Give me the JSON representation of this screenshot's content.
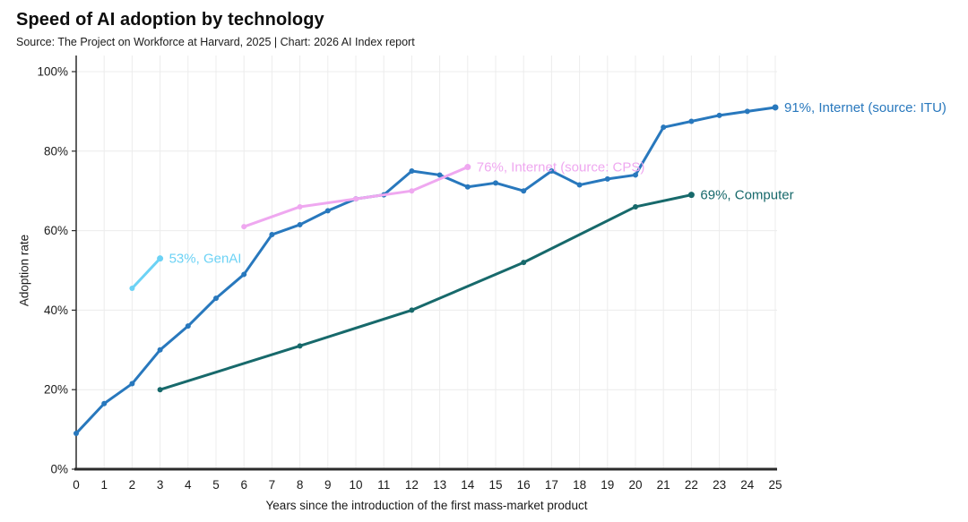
{
  "header": {
    "title": "Speed of AI adoption by technology",
    "subtitle": "Source: The Project on Workforce at Harvard, 2025 | Chart: 2026 AI Index report"
  },
  "chart_data": {
    "type": "line",
    "title": "Speed of AI adoption by technology",
    "xlabel": "Years since the introduction of the first mass-market product",
    "ylabel": "Adoption rate",
    "xlim": [
      0,
      25
    ],
    "ylim": [
      0,
      100
    ],
    "grid": true,
    "legend_position": "end-of-line-labels",
    "x_ticks": [
      0,
      1,
      2,
      3,
      4,
      5,
      6,
      7,
      8,
      9,
      10,
      11,
      12,
      13,
      14,
      15,
      16,
      17,
      18,
      19,
      20,
      21,
      22,
      23,
      24,
      25
    ],
    "y_ticks": [
      0,
      20,
      40,
      60,
      80,
      100
    ],
    "y_tick_labels": [
      "0%",
      "20%",
      "40%",
      "60%",
      "80%",
      "100%"
    ],
    "series": [
      {
        "name": "Internet (source: ITU)",
        "end_label": "91%, Internet (source: ITU)",
        "color": "#2878BD",
        "x": [
          0,
          1,
          2,
          3,
          4,
          5,
          6,
          7,
          8,
          9,
          10,
          11,
          12,
          13,
          14,
          15,
          16,
          17,
          18,
          19,
          20,
          21,
          22,
          23,
          24,
          25
        ],
        "values": [
          9,
          16.5,
          21.5,
          30,
          36,
          43,
          49,
          59,
          61.5,
          65,
          68,
          69,
          75,
          74,
          71,
          72,
          70,
          75,
          71.5,
          73,
          74,
          86,
          87.5,
          89,
          90,
          91
        ]
      },
      {
        "name": "Internet (source: CPS)",
        "end_label": "76%, Internet (source: CPS)",
        "color": "#EFA8F0",
        "x": [
          6,
          8,
          10,
          12,
          14
        ],
        "values": [
          61,
          66,
          68,
          70,
          76
        ]
      },
      {
        "name": "GenAI",
        "end_label": "53%, GenAI",
        "color": "#6CD2F5",
        "x": [
          2,
          3
        ],
        "values": [
          45.5,
          53
        ]
      },
      {
        "name": "Computer",
        "end_label": "69%, Computer",
        "color": "#17696B",
        "x": [
          3,
          8,
          12,
          16,
          20,
          22
        ],
        "values": [
          20,
          31,
          40,
          52,
          66,
          69
        ]
      }
    ]
  },
  "colors": {
    "background": "#ffffff",
    "axis": "#2b2b2b",
    "gridline": "#ececec",
    "tick_text": "#1a1a1a",
    "series_internet_itu": "#2878BD",
    "series_internet_cps": "#EFA8F0",
    "series_genai": "#6CD2F5",
    "series_computer": "#17696B"
  }
}
